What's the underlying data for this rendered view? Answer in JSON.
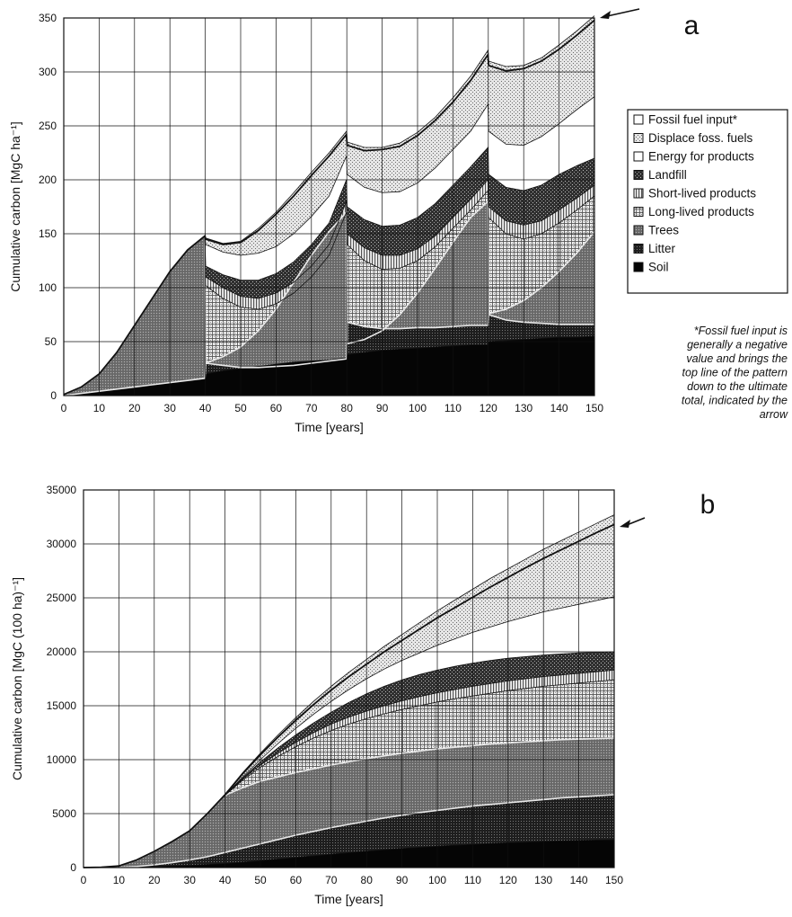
{
  "legend": [
    {
      "label": "Fossil fuel input*",
      "fill": "#ffffff"
    },
    {
      "label": "Displace foss. fuels",
      "fill": "#dcdcdc"
    },
    {
      "label": "Energy for products",
      "fill": "#ffffff"
    },
    {
      "label": "Landfill",
      "fill": "#3a3a3a"
    },
    {
      "label": "Short-lived products",
      "fill": "#bdbdbd"
    },
    {
      "label": "Long-lived products",
      "fill": "#cfcfcf"
    },
    {
      "label": "Trees",
      "fill": "#8a8a8a"
    },
    {
      "label": "Litter",
      "fill": "#2a2a2a"
    },
    {
      "label": "Soil",
      "fill": "#000000"
    }
  ],
  "footnote": [
    "*Fossil fuel input is",
    "generally a negative",
    "value and brings the",
    "top line of the pattern",
    "down to the ultimate",
    "total, indicated by the",
    "arrow"
  ],
  "chart_data": [
    {
      "type": "area",
      "panel_label": "a",
      "xlabel": "Time [years]",
      "ylabel": "Cumulative carbon [MgC ha⁻¹]",
      "xlim": [
        0,
        150
      ],
      "ylim": [
        0,
        350
      ],
      "xticks": [
        0,
        10,
        20,
        30,
        40,
        50,
        60,
        70,
        80,
        90,
        100,
        110,
        120,
        130,
        140,
        150
      ],
      "yticks": [
        0,
        50,
        100,
        150,
        200,
        250,
        300,
        350
      ],
      "stacked_tops": true,
      "x": [
        0,
        5,
        10,
        15,
        20,
        25,
        30,
        35,
        39.9,
        40.1,
        45,
        50,
        55,
        60,
        65,
        70,
        75,
        79.9,
        80.1,
        85,
        90,
        95,
        100,
        105,
        110,
        115,
        119.9,
        120.1,
        125,
        130,
        135,
        140,
        145,
        150
      ],
      "series": [
        {
          "name": "Soil",
          "values": [
            0,
            2,
            4,
            6,
            8,
            10,
            12,
            14,
            16,
            20,
            23,
            25,
            27,
            29,
            31,
            32,
            33,
            35,
            38,
            40,
            42,
            43,
            44,
            45,
            46,
            47,
            47,
            50,
            51,
            52,
            53,
            54,
            54,
            55
          ]
        },
        {
          "name": "Litter",
          "values": [
            0,
            2,
            4,
            6,
            8,
            10,
            12,
            14,
            16,
            30,
            28,
            26,
            26,
            27,
            28,
            30,
            32,
            34,
            68,
            64,
            62,
            62,
            63,
            63,
            64,
            65,
            65,
            75,
            70,
            68,
            67,
            66,
            66,
            66
          ]
        },
        {
          "name": "Trees",
          "values": [
            1,
            8,
            20,
            40,
            65,
            90,
            115,
            135,
            148,
            30,
            36,
            45,
            60,
            80,
            105,
            130,
            152,
            170,
            48,
            52,
            60,
            75,
            95,
            118,
            142,
            165,
            180,
            76,
            80,
            88,
            100,
            115,
            132,
            152
          ]
        },
        {
          "name": "Long-lived products",
          "values": [
            1,
            8,
            20,
            40,
            65,
            90,
            115,
            135,
            148,
            102,
            90,
            82,
            80,
            85,
            95,
            110,
            130,
            170,
            140,
            125,
            117,
            118,
            125,
            138,
            155,
            172,
            190,
            165,
            150,
            145,
            150,
            160,
            172,
            185
          ]
        },
        {
          "name": "Short-lived products",
          "values": [
            1,
            8,
            20,
            40,
            65,
            90,
            115,
            135,
            148,
            110,
            100,
            92,
            90,
            95,
            105,
            120,
            140,
            180,
            150,
            137,
            130,
            130,
            136,
            148,
            165,
            182,
            200,
            175,
            162,
            158,
            162,
            172,
            183,
            195
          ]
        },
        {
          "name": "Landfill",
          "values": [
            1,
            8,
            20,
            40,
            65,
            90,
            115,
            135,
            148,
            120,
            112,
            107,
            107,
            113,
            124,
            140,
            160,
            200,
            175,
            163,
            157,
            158,
            165,
            178,
            195,
            212,
            230,
            205,
            193,
            190,
            195,
            205,
            213,
            220
          ]
        },
        {
          "name": "Energy for products",
          "values": [
            1,
            8,
            20,
            40,
            65,
            90,
            115,
            135,
            148,
            140,
            133,
            130,
            132,
            138,
            150,
            166,
            185,
            222,
            205,
            193,
            188,
            189,
            197,
            211,
            228,
            245,
            270,
            245,
            233,
            232,
            240,
            252,
            265,
            277
          ]
        },
        {
          "name": "Displace foss. fuels",
          "values": [
            1,
            8,
            20,
            40,
            65,
            90,
            115,
            135,
            148,
            146,
            141,
            143,
            155,
            170,
            188,
            207,
            225,
            245,
            235,
            230,
            230,
            234,
            244,
            258,
            276,
            296,
            320,
            310,
            305,
            306,
            313,
            325,
            338,
            352
          ]
        },
        {
          "name": "Fossil fuel input*",
          "values": [
            1,
            8,
            20,
            40,
            65,
            90,
            115,
            135,
            148,
            145,
            140,
            142,
            153,
            168,
            185,
            204,
            222,
            242,
            232,
            227,
            228,
            231,
            241,
            255,
            272,
            292,
            316,
            306,
            301,
            303,
            310,
            321,
            334,
            348
          ]
        }
      ]
    },
    {
      "type": "area",
      "panel_label": "b",
      "xlabel": "Time [years]",
      "ylabel": "Cumulative carbon [MgC (100 ha)⁻¹]",
      "xlim": [
        0,
        150
      ],
      "ylim": [
        0,
        35000
      ],
      "xticks": [
        0,
        10,
        20,
        30,
        40,
        50,
        60,
        70,
        80,
        90,
        100,
        110,
        120,
        130,
        140,
        150
      ],
      "yticks": [
        0,
        5000,
        10000,
        15000,
        20000,
        25000,
        30000,
        35000
      ],
      "stacked_tops": true,
      "x": [
        0,
        5,
        10,
        15,
        20,
        25,
        30,
        35,
        40,
        45,
        50,
        55,
        60,
        65,
        70,
        75,
        80,
        85,
        90,
        95,
        100,
        105,
        110,
        115,
        120,
        125,
        130,
        135,
        140,
        145,
        150
      ],
      "series": [
        {
          "name": "Soil",
          "values": [
            0,
            0,
            10,
            40,
            80,
            140,
            200,
            280,
            380,
            500,
            640,
            790,
            940,
            1090,
            1240,
            1380,
            1520,
            1650,
            1770,
            1880,
            1980,
            2070,
            2150,
            2230,
            2300,
            2360,
            2420,
            2470,
            2510,
            2550,
            2580
          ]
        },
        {
          "name": "Litter",
          "values": [
            0,
            0,
            20,
            100,
            250,
            450,
            700,
            1000,
            1400,
            1800,
            2200,
            2600,
            3000,
            3350,
            3700,
            4000,
            4300,
            4600,
            4850,
            5100,
            5300,
            5500,
            5700,
            5850,
            6000,
            6150,
            6300,
            6450,
            6550,
            6650,
            6750
          ]
        },
        {
          "name": "Trees",
          "values": [
            0,
            30,
            150,
            700,
            1500,
            2400,
            3400,
            5000,
            6700,
            7400,
            8000,
            8400,
            8800,
            9150,
            9500,
            9800,
            10100,
            10350,
            10600,
            10800,
            11000,
            11150,
            11300,
            11450,
            11550,
            11650,
            11750,
            11850,
            11900,
            11950,
            12000
          ]
        },
        {
          "name": "Long-lived products",
          "values": [
            0,
            30,
            150,
            700,
            1500,
            2400,
            3400,
            5000,
            6700,
            8100,
            9300,
            10300,
            11200,
            12000,
            12700,
            13300,
            13800,
            14250,
            14650,
            15000,
            15350,
            15650,
            15900,
            16150,
            16400,
            16600,
            16800,
            16950,
            17100,
            17250,
            17400
          ]
        },
        {
          "name": "Short-lived products",
          "values": [
            0,
            30,
            150,
            700,
            1500,
            2400,
            3400,
            5000,
            6700,
            8200,
            9500,
            10600,
            11600,
            12500,
            13300,
            13950,
            14500,
            15000,
            15450,
            15850,
            16200,
            16500,
            16800,
            17050,
            17300,
            17500,
            17700,
            17850,
            18000,
            18150,
            18300
          ]
        },
        {
          "name": "Landfill",
          "values": [
            0,
            30,
            150,
            700,
            1500,
            2400,
            3400,
            5000,
            6700,
            8300,
            9800,
            11100,
            12300,
            13400,
            14400,
            15300,
            16100,
            16800,
            17400,
            17900,
            18300,
            18650,
            18950,
            19200,
            19400,
            19550,
            19700,
            19800,
            19900,
            19950,
            20000
          ]
        },
        {
          "name": "Energy for products",
          "values": [
            0,
            30,
            150,
            700,
            1500,
            2400,
            3400,
            5000,
            6700,
            8400,
            10000,
            11500,
            12900,
            14200,
            15400,
            16500,
            17500,
            18400,
            19200,
            19900,
            20600,
            21200,
            21800,
            22300,
            22800,
            23250,
            23700,
            24050,
            24400,
            24750,
            25100
          ]
        },
        {
          "name": "Displace foss. fuels",
          "values": [
            0,
            30,
            150,
            700,
            1500,
            2400,
            3400,
            5000,
            6800,
            8800,
            10600,
            12300,
            13900,
            15400,
            16800,
            18100,
            19300,
            20500,
            21600,
            22700,
            23800,
            24800,
            25800,
            26800,
            27700,
            28600,
            29500,
            30300,
            31100,
            31900,
            32700
          ]
        },
        {
          "name": "Fossil fuel input*",
          "values": [
            0,
            30,
            150,
            700,
            1500,
            2400,
            3400,
            5000,
            6750,
            8700,
            10450,
            12100,
            13650,
            15100,
            16450,
            17700,
            18850,
            20000,
            21050,
            22100,
            23150,
            24100,
            25050,
            26000,
            26900,
            27800,
            28650,
            29450,
            30250,
            31050,
            31800
          ]
        }
      ]
    }
  ]
}
